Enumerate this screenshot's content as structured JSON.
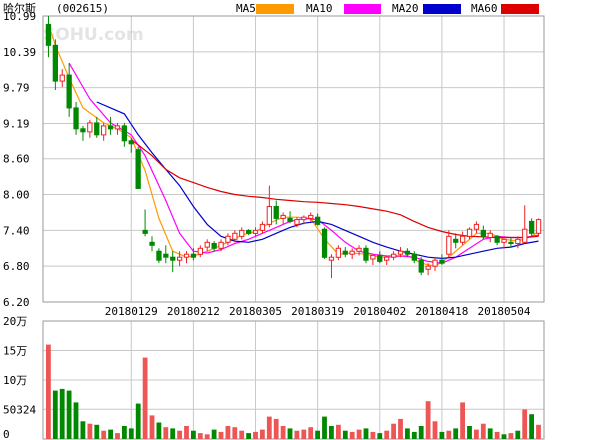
{
  "header": {
    "stock_name": "哈尔斯",
    "stock_code": "(002615)",
    "watermark": "SOHU.com"
  },
  "legend": [
    {
      "label": "MA5",
      "color": "#ff9900"
    },
    {
      "label": "MA10",
      "color": "#ff00ff"
    },
    {
      "label": "MA20",
      "color": "#0000cc"
    },
    {
      "label": "MA60",
      "color": "#dd0000"
    }
  ],
  "colors": {
    "up": "#ee2222",
    "down": "#008800",
    "volume_up": "#ee5555",
    "volume_down": "#008800",
    "grid": "#c8c8c8",
    "frame": "#999999"
  },
  "chart_data": [
    {
      "type": "candlestick",
      "title": "",
      "ylim": [
        6.2,
        10.99
      ],
      "ytick_labels": [
        "10.99",
        "10.39",
        "9.79",
        "9.19",
        "8.60",
        "8.00",
        "7.40",
        "6.80",
        "6.20"
      ],
      "xtick_labels": [
        "20180129",
        "20180212",
        "20180305",
        "20180319",
        "20180402",
        "20180418",
        "20180504"
      ],
      "xtick_index": [
        12,
        21,
        30,
        39,
        48,
        57,
        66
      ],
      "grid": true,
      "ohlc": [
        [
          10.85,
          10.99,
          10.3,
          10.5
        ],
        [
          10.5,
          10.6,
          9.75,
          9.9
        ],
        [
          9.9,
          10.1,
          9.8,
          10.0
        ],
        [
          10.0,
          10.2,
          9.3,
          9.45
        ],
        [
          9.45,
          9.55,
          9.0,
          9.1
        ],
        [
          9.1,
          9.15,
          8.9,
          9.05
        ],
        [
          9.05,
          9.25,
          8.95,
          9.2
        ],
        [
          9.2,
          9.3,
          8.95,
          9.0
        ],
        [
          9.0,
          9.2,
          8.9,
          9.15
        ],
        [
          9.15,
          9.3,
          9.0,
          9.1
        ],
        [
          9.1,
          9.2,
          9.0,
          9.15
        ],
        [
          9.15,
          9.2,
          8.8,
          8.9
        ],
        [
          8.9,
          8.95,
          8.7,
          8.85
        ],
        [
          8.75,
          8.8,
          8.1,
          8.1
        ],
        [
          7.4,
          7.75,
          7.3,
          7.35
        ],
        [
          7.2,
          7.3,
          7.05,
          7.15
        ],
        [
          7.05,
          7.1,
          6.85,
          6.9
        ],
        [
          7.0,
          7.15,
          6.85,
          6.95
        ],
        [
          6.95,
          7.05,
          6.7,
          6.9
        ],
        [
          6.9,
          7.05,
          6.8,
          6.95
        ],
        [
          6.95,
          7.05,
          6.85,
          7.0
        ],
        [
          7.0,
          7.1,
          6.9,
          6.95
        ],
        [
          7.0,
          7.15,
          6.95,
          7.1
        ],
        [
          7.12,
          7.25,
          7.05,
          7.2
        ],
        [
          7.18,
          7.22,
          7.05,
          7.1
        ],
        [
          7.1,
          7.25,
          7.05,
          7.2
        ],
        [
          7.2,
          7.35,
          7.15,
          7.3
        ],
        [
          7.25,
          7.4,
          7.2,
          7.35
        ],
        [
          7.3,
          7.45,
          7.25,
          7.4
        ],
        [
          7.4,
          7.42,
          7.32,
          7.35
        ],
        [
          7.35,
          7.45,
          7.3,
          7.4
        ],
        [
          7.4,
          7.55,
          7.35,
          7.5
        ],
        [
          7.5,
          8.15,
          7.45,
          7.8
        ],
        [
          7.8,
          7.9,
          7.5,
          7.6
        ],
        [
          7.6,
          7.7,
          7.5,
          7.65
        ],
        [
          7.6,
          7.72,
          7.52,
          7.55
        ],
        [
          7.5,
          7.62,
          7.45,
          7.58
        ],
        [
          7.58,
          7.65,
          7.5,
          7.62
        ],
        [
          7.6,
          7.7,
          7.55,
          7.65
        ],
        [
          7.62,
          7.68,
          7.48,
          7.5
        ],
        [
          7.42,
          7.45,
          6.92,
          6.95
        ],
        [
          6.9,
          7.0,
          6.6,
          6.95
        ],
        [
          6.95,
          7.15,
          6.9,
          7.1
        ],
        [
          7.05,
          7.12,
          6.95,
          7.0
        ],
        [
          7.0,
          7.1,
          6.92,
          7.05
        ],
        [
          7.05,
          7.15,
          6.98,
          7.1
        ],
        [
          7.1,
          7.15,
          6.85,
          6.9
        ],
        [
          6.92,
          7.0,
          6.82,
          6.98
        ],
        [
          6.98,
          7.05,
          6.85,
          6.88
        ],
        [
          6.9,
          6.98,
          6.82,
          6.95
        ],
        [
          6.95,
          7.05,
          6.9,
          7.0
        ],
        [
          7.0,
          7.12,
          6.95,
          7.05
        ],
        [
          7.05,
          7.1,
          6.95,
          7.0
        ],
        [
          7.0,
          7.05,
          6.85,
          6.9
        ],
        [
          6.9,
          6.95,
          6.65,
          6.7
        ],
        [
          6.75,
          6.85,
          6.65,
          6.8
        ],
        [
          6.8,
          6.95,
          6.72,
          6.9
        ],
        [
          6.9,
          7.0,
          6.82,
          6.85
        ],
        [
          7.0,
          7.4,
          6.95,
          7.3
        ],
        [
          7.25,
          7.35,
          7.1,
          7.2
        ],
        [
          7.2,
          7.38,
          7.15,
          7.3
        ],
        [
          7.3,
          7.45,
          7.25,
          7.42
        ],
        [
          7.42,
          7.55,
          7.35,
          7.5
        ],
        [
          7.4,
          7.48,
          7.25,
          7.3
        ],
        [
          7.28,
          7.4,
          7.2,
          7.35
        ],
        [
          7.3,
          7.32,
          7.15,
          7.2
        ],
        [
          7.2,
          7.3,
          7.1,
          7.25
        ],
        [
          7.2,
          7.28,
          7.12,
          7.18
        ],
        [
          7.18,
          7.3,
          7.1,
          7.25
        ],
        [
          7.2,
          7.82,
          7.18,
          7.42
        ],
        [
          7.55,
          7.6,
          7.3,
          7.35
        ],
        [
          7.35,
          7.6,
          7.3,
          7.58
        ]
      ],
      "ma": {
        "MA5": [
          [
            0,
            10.85
          ],
          [
            1,
            10.5
          ],
          [
            3,
            9.95
          ],
          [
            5,
            9.45
          ],
          [
            8,
            9.2
          ],
          [
            10,
            9.1
          ],
          [
            12,
            8.95
          ],
          [
            14,
            8.4
          ],
          [
            16,
            7.6
          ],
          [
            18,
            7.05
          ],
          [
            20,
            6.95
          ],
          [
            22,
            7.0
          ],
          [
            24,
            7.1
          ],
          [
            26,
            7.2
          ],
          [
            28,
            7.32
          ],
          [
            30,
            7.38
          ],
          [
            32,
            7.52
          ],
          [
            34,
            7.62
          ],
          [
            36,
            7.62
          ],
          [
            38,
            7.6
          ],
          [
            40,
            7.25
          ],
          [
            42,
            7.0
          ],
          [
            44,
            7.02
          ],
          [
            46,
            7.0
          ],
          [
            48,
            6.95
          ],
          [
            50,
            6.95
          ],
          [
            52,
            6.98
          ],
          [
            54,
            6.85
          ],
          [
            56,
            6.8
          ],
          [
            58,
            6.95
          ],
          [
            60,
            7.15
          ],
          [
            62,
            7.35
          ],
          [
            64,
            7.35
          ],
          [
            66,
            7.25
          ],
          [
            68,
            7.22
          ],
          [
            70,
            7.3
          ],
          [
            71,
            7.38
          ]
        ],
        "MA10": [
          [
            3,
            10.2
          ],
          [
            6,
            9.6
          ],
          [
            9,
            9.2
          ],
          [
            12,
            9.0
          ],
          [
            14,
            8.65
          ],
          [
            17,
            7.9
          ],
          [
            19,
            7.35
          ],
          [
            21,
            7.05
          ],
          [
            23,
            7.02
          ],
          [
            25,
            7.08
          ],
          [
            27,
            7.18
          ],
          [
            29,
            7.25
          ],
          [
            31,
            7.35
          ],
          [
            33,
            7.45
          ],
          [
            35,
            7.55
          ],
          [
            37,
            7.6
          ],
          [
            39,
            7.58
          ],
          [
            41,
            7.4
          ],
          [
            43,
            7.2
          ],
          [
            45,
            7.05
          ],
          [
            47,
            7.0
          ],
          [
            49,
            6.97
          ],
          [
            51,
            6.97
          ],
          [
            53,
            6.95
          ],
          [
            55,
            6.88
          ],
          [
            57,
            6.85
          ],
          [
            59,
            6.95
          ],
          [
            61,
            7.1
          ],
          [
            63,
            7.25
          ],
          [
            65,
            7.3
          ],
          [
            67,
            7.28
          ],
          [
            69,
            7.28
          ],
          [
            71,
            7.32
          ]
        ],
        "MA20": [
          [
            7,
            9.55
          ],
          [
            9,
            9.45
          ],
          [
            11,
            9.35
          ],
          [
            13,
            9.0
          ],
          [
            15,
            8.7
          ],
          [
            17,
            8.42
          ],
          [
            19,
            8.15
          ],
          [
            21,
            7.8
          ],
          [
            23,
            7.5
          ],
          [
            25,
            7.3
          ],
          [
            27,
            7.22
          ],
          [
            29,
            7.2
          ],
          [
            31,
            7.25
          ],
          [
            33,
            7.35
          ],
          [
            35,
            7.45
          ],
          [
            37,
            7.52
          ],
          [
            39,
            7.55
          ],
          [
            41,
            7.5
          ],
          [
            43,
            7.4
          ],
          [
            45,
            7.3
          ],
          [
            47,
            7.2
          ],
          [
            49,
            7.12
          ],
          [
            51,
            7.05
          ],
          [
            53,
            7.0
          ],
          [
            55,
            6.95
          ],
          [
            57,
            6.93
          ],
          [
            59,
            6.95
          ],
          [
            61,
            7.0
          ],
          [
            63,
            7.05
          ],
          [
            65,
            7.1
          ],
          [
            67,
            7.12
          ],
          [
            69,
            7.18
          ],
          [
            71,
            7.22
          ]
        ],
        "MA60": [
          [
            12,
            8.92
          ],
          [
            15,
            8.65
          ],
          [
            17,
            8.42
          ],
          [
            19,
            8.28
          ],
          [
            21,
            8.2
          ],
          [
            23,
            8.12
          ],
          [
            25,
            8.05
          ],
          [
            27,
            8.0
          ],
          [
            29,
            7.97
          ],
          [
            31,
            7.95
          ],
          [
            33,
            7.92
          ],
          [
            35,
            7.9
          ],
          [
            37,
            7.88
          ],
          [
            39,
            7.87
          ],
          [
            41,
            7.85
          ],
          [
            43,
            7.83
          ],
          [
            45,
            7.8
          ],
          [
            47,
            7.76
          ],
          [
            49,
            7.72
          ],
          [
            51,
            7.66
          ],
          [
            53,
            7.55
          ],
          [
            55,
            7.45
          ],
          [
            57,
            7.38
          ],
          [
            59,
            7.33
          ],
          [
            61,
            7.3
          ],
          [
            63,
            7.29
          ],
          [
            65,
            7.28
          ],
          [
            67,
            7.28
          ],
          [
            69,
            7.28
          ],
          [
            71,
            7.3
          ]
        ]
      }
    },
    {
      "type": "bar",
      "title": "",
      "ylim": [
        0,
        200000
      ],
      "ytick_values": [
        200000,
        150000,
        100000,
        50324,
        0
      ],
      "ytick_labels": [
        "20万",
        "15万",
        "10万",
        "50324",
        "0"
      ],
      "grid": true,
      "volume": [
        {
          "v": 160000,
          "up": true
        },
        {
          "v": 82000,
          "up": false
        },
        {
          "v": 85000,
          "up": false
        },
        {
          "v": 82000,
          "up": false
        },
        {
          "v": 62000,
          "up": false
        },
        {
          "v": 30000,
          "up": false
        },
        {
          "v": 26000,
          "up": true
        },
        {
          "v": 24000,
          "up": false
        },
        {
          "v": 14000,
          "up": true
        },
        {
          "v": 16000,
          "up": false
        },
        {
          "v": 10000,
          "up": true
        },
        {
          "v": 22000,
          "up": false
        },
        {
          "v": 18000,
          "up": false
        },
        {
          "v": 60000,
          "up": false
        },
        {
          "v": 138000,
          "up": true
        },
        {
          "v": 40000,
          "up": true
        },
        {
          "v": 28000,
          "up": false
        },
        {
          "v": 20000,
          "up": true
        },
        {
          "v": 18000,
          "up": false
        },
        {
          "v": 14000,
          "up": true
        },
        {
          "v": 22000,
          "up": true
        },
        {
          "v": 14000,
          "up": false
        },
        {
          "v": 10000,
          "up": true
        },
        {
          "v": 8000,
          "up": true
        },
        {
          "v": 16000,
          "up": false
        },
        {
          "v": 12000,
          "up": true
        },
        {
          "v": 22000,
          "up": true
        },
        {
          "v": 20000,
          "up": true
        },
        {
          "v": 14000,
          "up": true
        },
        {
          "v": 10000,
          "up": false
        },
        {
          "v": 12000,
          "up": true
        },
        {
          "v": 16000,
          "up": true
        },
        {
          "v": 38000,
          "up": true
        },
        {
          "v": 34000,
          "up": true
        },
        {
          "v": 22000,
          "up": true
        },
        {
          "v": 18000,
          "up": false
        },
        {
          "v": 14000,
          "up": true
        },
        {
          "v": 16000,
          "up": true
        },
        {
          "v": 20000,
          "up": true
        },
        {
          "v": 14000,
          "up": false
        },
        {
          "v": 38000,
          "up": false
        },
        {
          "v": 22000,
          "up": false
        },
        {
          "v": 24000,
          "up": true
        },
        {
          "v": 14000,
          "up": false
        },
        {
          "v": 12000,
          "up": true
        },
        {
          "v": 16000,
          "up": true
        },
        {
          "v": 18000,
          "up": false
        },
        {
          "v": 12000,
          "up": true
        },
        {
          "v": 10000,
          "up": false
        },
        {
          "v": 14000,
          "up": true
        },
        {
          "v": 26000,
          "up": true
        },
        {
          "v": 34000,
          "up": true
        },
        {
          "v": 18000,
          "up": false
        },
        {
          "v": 12000,
          "up": false
        },
        {
          "v": 22000,
          "up": false
        },
        {
          "v": 64000,
          "up": true
        },
        {
          "v": 30000,
          "up": true
        },
        {
          "v": 12000,
          "up": false
        },
        {
          "v": 14000,
          "up": true
        },
        {
          "v": 18000,
          "up": false
        },
        {
          "v": 62000,
          "up": true
        },
        {
          "v": 22000,
          "up": false
        },
        {
          "v": 16000,
          "up": true
        },
        {
          "v": 26000,
          "up": true
        },
        {
          "v": 18000,
          "up": false
        },
        {
          "v": 12000,
          "up": true
        },
        {
          "v": 8000,
          "up": false
        },
        {
          "v": 10000,
          "up": true
        },
        {
          "v": 14000,
          "up": false
        },
        {
          "v": 50000,
          "up": true
        },
        {
          "v": 42000,
          "up": false
        },
        {
          "v": 24000,
          "up": true
        }
      ]
    }
  ]
}
